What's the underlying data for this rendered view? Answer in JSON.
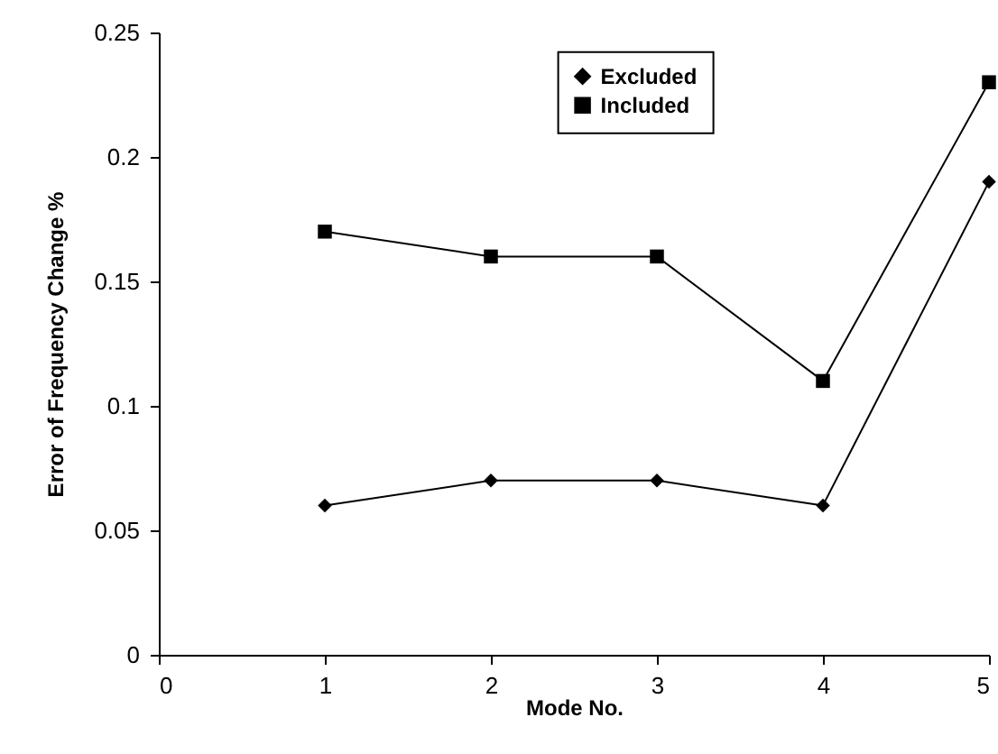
{
  "chart_data": {
    "type": "line",
    "xlabel": "Mode No.",
    "ylabel": "Error of Frequency Change %",
    "x": [
      1,
      2,
      3,
      4,
      5
    ],
    "series": [
      {
        "name": "Excluded",
        "color": "#000000",
        "marker": "diamond",
        "values": [
          0.06,
          0.07,
          0.07,
          0.06,
          0.19
        ]
      },
      {
        "name": "Included",
        "color": "#000000",
        "marker": "square",
        "values": [
          0.17,
          0.16,
          0.16,
          0.11,
          0.23
        ]
      }
    ],
    "xlim": [
      0,
      5
    ],
    "xticks": [
      0,
      1,
      2,
      3,
      4,
      5
    ],
    "ylim": [
      0,
      0.25
    ],
    "yticks": [
      0,
      0.05,
      0.1,
      0.15,
      0.2,
      0.25
    ],
    "grid": false,
    "legend": "top",
    "line_style": "solid"
  }
}
